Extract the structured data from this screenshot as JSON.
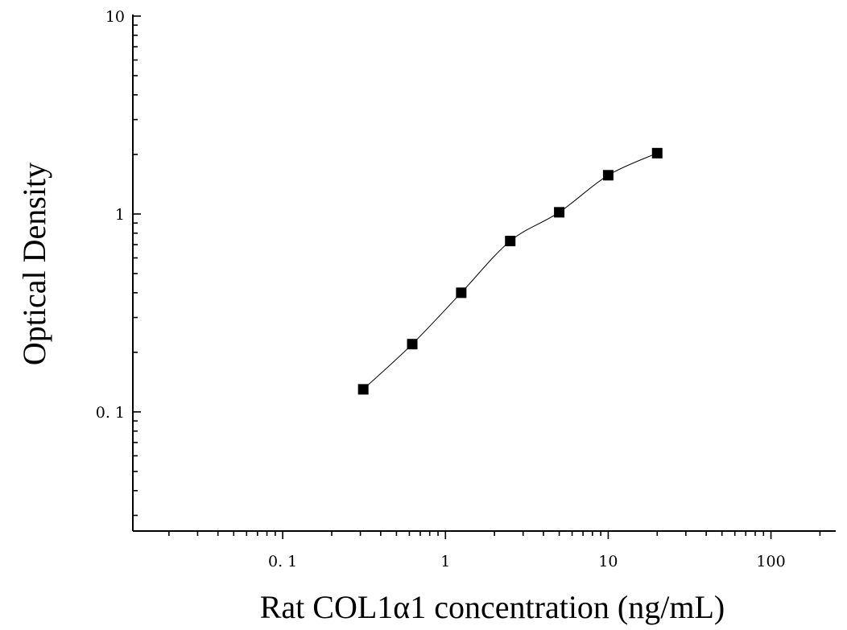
{
  "chart_data": {
    "type": "scatter",
    "title": "",
    "xlabel": "Rat COL1α1 concentration (ng/mL)",
    "ylabel": "Optical Density",
    "xscale": "log",
    "yscale": "log",
    "xlim": [
      0.012,
      250
    ],
    "ylim": [
      0.025,
      10
    ],
    "x_tick_labels": [
      "0. 1",
      "1",
      "10",
      "100"
    ],
    "x_tick_values": [
      0.1,
      1,
      10,
      100
    ],
    "y_tick_labels": [
      "10",
      "1",
      "0. 1"
    ],
    "y_tick_values": [
      10,
      1,
      0.1
    ],
    "grid": false,
    "legend": "none",
    "series": [
      {
        "x": [
          0.3125,
          0.625,
          1.25,
          2.5,
          5,
          10,
          20
        ],
        "y": [
          0.13,
          0.22,
          0.4,
          0.73,
          1.02,
          1.57,
          2.03
        ],
        "marker": "square",
        "fit_line": true
      }
    ]
  }
}
